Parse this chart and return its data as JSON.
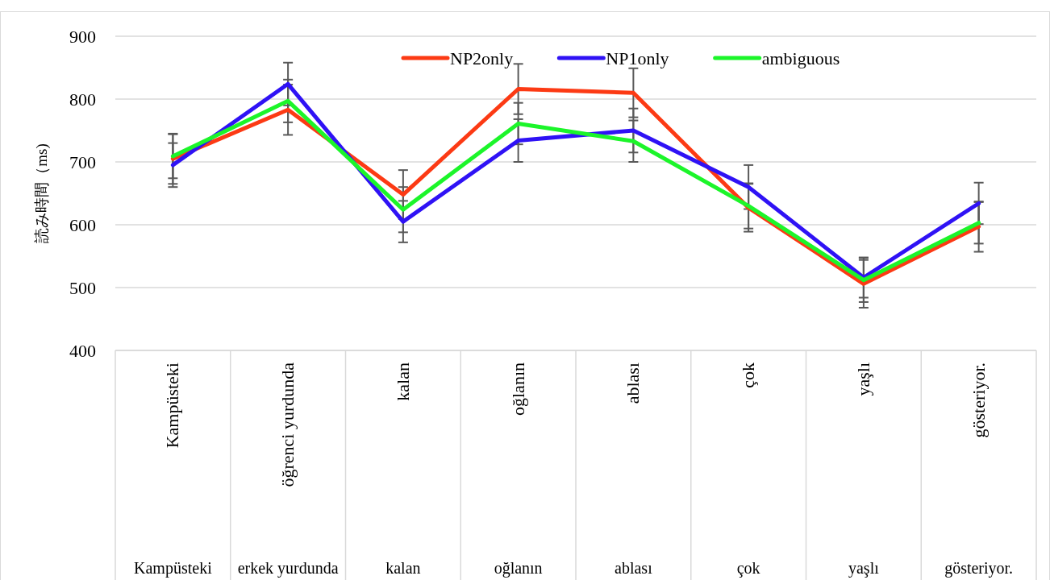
{
  "chart_data": {
    "type": "line",
    "ylabel": "読み時間（ms)",
    "categories": [
      "Kampüsteki",
      "öğrenci yurdunda",
      "kalan",
      "oğlanın",
      "ablası",
      "çok",
      "yaşlı",
      "gösteriyor."
    ],
    "annotations": [
      "Kampüsteki",
      "erkek yurdunda",
      "kalan",
      "oğlanın",
      "ablası",
      "çok",
      "yaşlı",
      "gösteriyor."
    ],
    "series": [
      {
        "name": "NP2only",
        "color": "#fc3a14",
        "values": [
          705,
          783,
          648,
          816,
          810,
          627,
          506,
          597
        ],
        "errors": [
          40,
          40,
          39,
          40,
          39,
          38,
          38,
          40
        ]
      },
      {
        "name": "NP1only",
        "color": "#2f12f5",
        "values": [
          695,
          824,
          605,
          734,
          750,
          660,
          516,
          634
        ],
        "errors": [
          35,
          34,
          33,
          34,
          35,
          35,
          32,
          33
        ]
      },
      {
        "name": "ambiguous",
        "color": "#1cf52a",
        "values": [
          709,
          797,
          624,
          761,
          733,
          630,
          512,
          603
        ],
        "errors": [
          35,
          34,
          36,
          33,
          33,
          36,
          35,
          33
        ]
      }
    ],
    "ylim": [
      400,
      900
    ],
    "yticks": [
      400,
      500,
      600,
      700,
      800,
      900
    ],
    "grid": "y",
    "legend": "top",
    "marker": "none",
    "line_style": "solid"
  }
}
